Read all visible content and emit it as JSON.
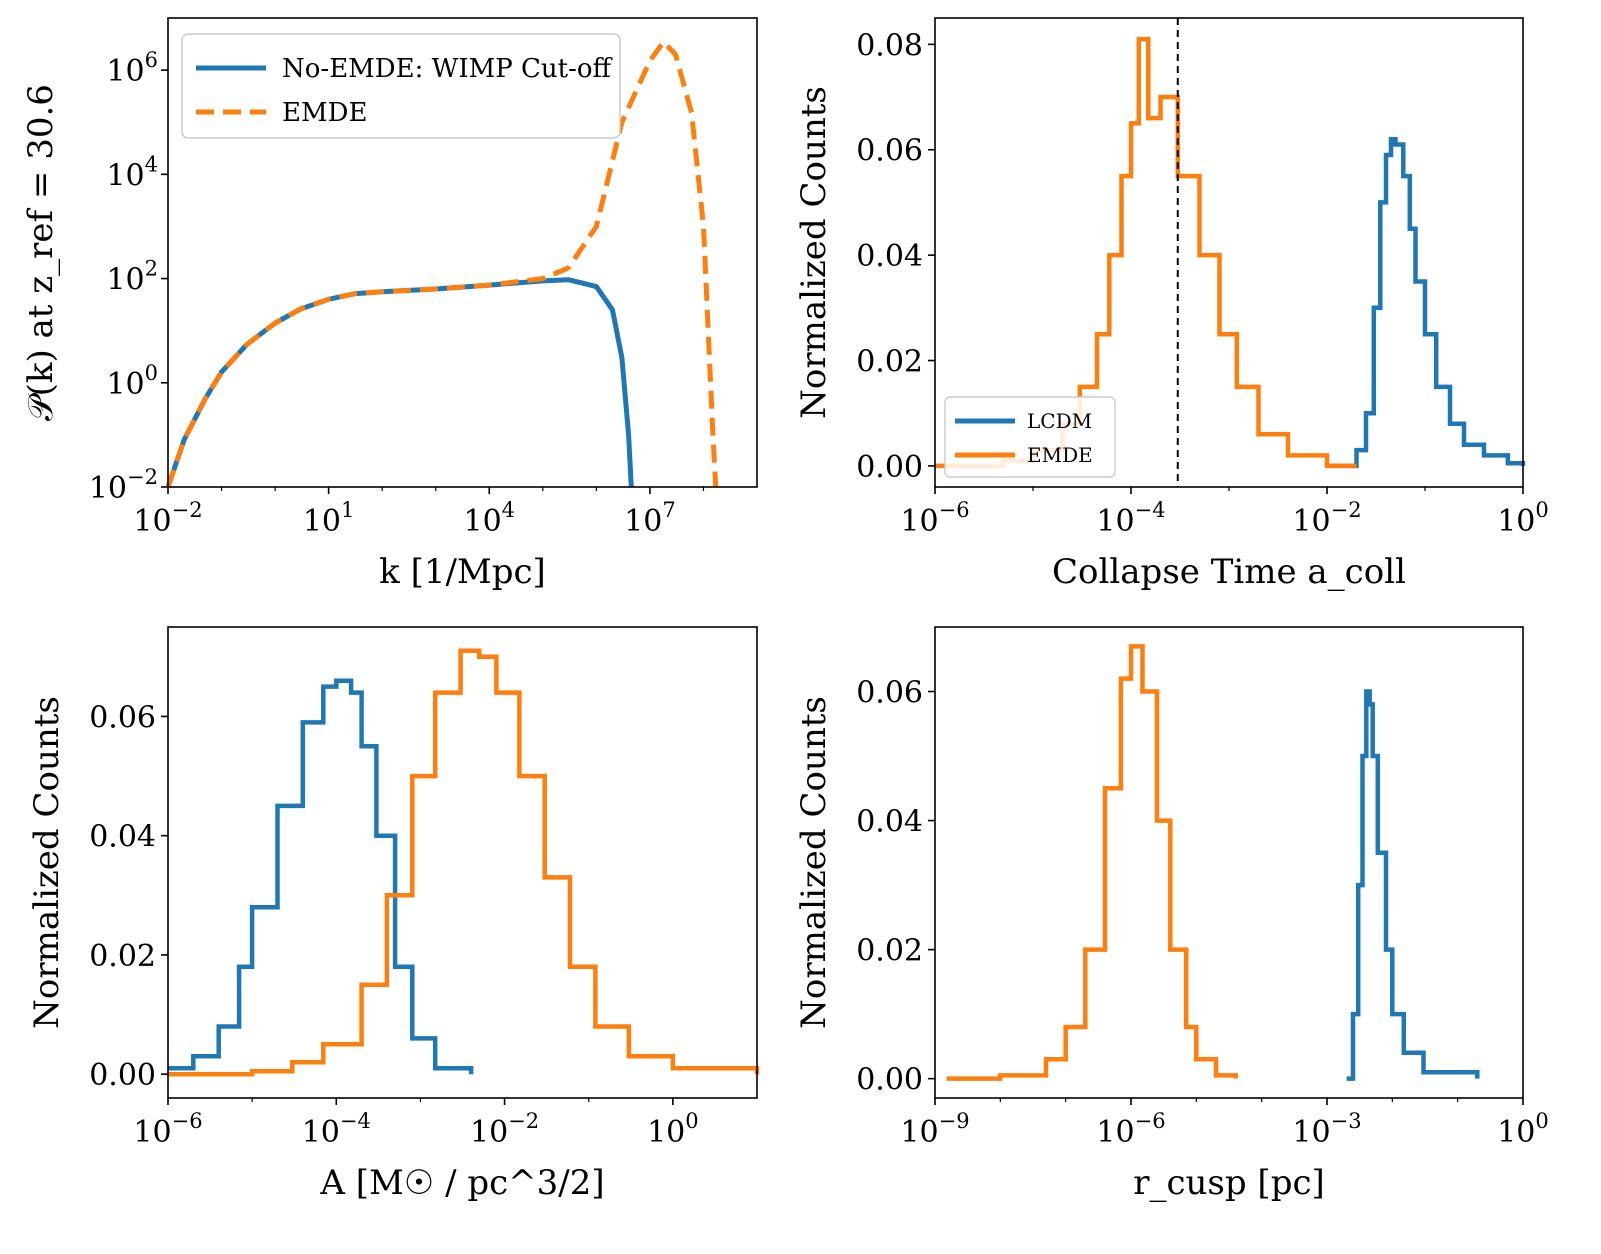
{
  "colors": {
    "blue": "#1f77b4",
    "orange": "#ff7f0e",
    "axis": "#000000"
  },
  "chart_data": [
    {
      "id": "power_spectrum",
      "type": "line",
      "xscale": "log",
      "yscale": "log",
      "xlim": [
        0.01,
        1000000000.0
      ],
      "ylim": [
        0.01,
        10000000.0
      ],
      "xlabel": "k [1/Mpc]",
      "ylabel": "𝒫(k) at z_ref = 30.6",
      "xticks": [
        {
          "v": 0.01,
          "base": "10",
          "exp": "−2"
        },
        {
          "v": 10,
          "base": "10",
          "exp": "1"
        },
        {
          "v": 10000,
          "base": "10",
          "exp": "4"
        },
        {
          "v": 10000000,
          "base": "10",
          "exp": "7"
        }
      ],
      "yticks": [
        {
          "v": 0.01,
          "base": "10",
          "exp": "−2"
        },
        {
          "v": 1,
          "base": "10",
          "exp": "0"
        },
        {
          "v": 100,
          "base": "10",
          "exp": "2"
        },
        {
          "v": 10000,
          "base": "10",
          "exp": "4"
        },
        {
          "v": 1000000,
          "base": "10",
          "exp": "6"
        }
      ],
      "legend": {
        "placement": "top-left"
      },
      "series": [
        {
          "name": "No-EMDE: WIMP Cut-off",
          "color": "blue",
          "style": "solid",
          "points": [
            [
              0.01,
              0.01
            ],
            [
              0.02,
              0.08
            ],
            [
              0.05,
              0.5
            ],
            [
              0.1,
              1.6
            ],
            [
              0.3,
              5.5
            ],
            [
              1,
              14
            ],
            [
              3,
              26
            ],
            [
              10,
              40
            ],
            [
              30,
              51
            ],
            [
              100,
              56
            ],
            [
              1000,
              63
            ],
            [
              10000,
              75
            ],
            [
              100000,
              90
            ],
            [
              300000,
              95
            ],
            [
              1000000,
              70
            ],
            [
              2000000,
              25
            ],
            [
              3000000,
              3
            ],
            [
              4000000,
              0.1
            ],
            [
              4500000,
              0.01
            ]
          ]
        },
        {
          "name": "EMDE",
          "color": "orange",
          "style": "dashed",
          "points": [
            [
              0.01,
              0.01
            ],
            [
              0.02,
              0.08
            ],
            [
              0.05,
              0.5
            ],
            [
              0.1,
              1.6
            ],
            [
              0.3,
              5.5
            ],
            [
              1,
              14
            ],
            [
              3,
              26
            ],
            [
              10,
              40
            ],
            [
              30,
              51
            ],
            [
              100,
              56
            ],
            [
              1000,
              63
            ],
            [
              10000,
              75
            ],
            [
              100000,
              100
            ],
            [
              300000,
              160
            ],
            [
              1000000,
              1000
            ],
            [
              3000000,
              100000
            ],
            [
              10000000,
              1500000
            ],
            [
              18000000,
              3500000
            ],
            [
              30000000,
              2000000
            ],
            [
              60000000,
              150000
            ],
            [
              100000000,
              1000
            ],
            [
              150000000,
              0.1
            ],
            [
              170000000,
              0.01
            ]
          ]
        }
      ]
    },
    {
      "id": "collapse_time",
      "type": "histogram",
      "xscale": "log",
      "yscale": "linear",
      "xlim": [
        1e-06,
        1
      ],
      "ylim": [
        -0.004,
        0.085
      ],
      "xlabel": "Collapse Time a_coll",
      "ylabel": "Normalized Counts",
      "xticks": [
        {
          "v": 1e-06,
          "base": "10",
          "exp": "−6"
        },
        {
          "v": 0.0001,
          "base": "10",
          "exp": "−4"
        },
        {
          "v": 0.01,
          "base": "10",
          "exp": "−2"
        },
        {
          "v": 1,
          "base": "10",
          "exp": "0"
        }
      ],
      "yticks": [
        {
          "v": 0,
          "label": "0.00"
        },
        {
          "v": 0.02,
          "label": "0.02"
        },
        {
          "v": 0.04,
          "label": "0.04"
        },
        {
          "v": 0.06,
          "label": "0.06"
        },
        {
          "v": 0.08,
          "label": "0.08"
        }
      ],
      "vline": 0.0003,
      "legend": {
        "placement": "lower-left"
      },
      "series": [
        {
          "name": "LCDM",
          "color": "blue",
          "points": [
            [
              0.01,
              0.0
            ],
            [
              0.015,
              0.0
            ],
            [
              0.02,
              0.003
            ],
            [
              0.025,
              0.01
            ],
            [
              0.03,
              0.03
            ],
            [
              0.035,
              0.05
            ],
            [
              0.04,
              0.059
            ],
            [
              0.045,
              0.062
            ],
            [
              0.05,
              0.061
            ],
            [
              0.06,
              0.055
            ],
            [
              0.07,
              0.045
            ],
            [
              0.08,
              0.035
            ],
            [
              0.1,
              0.025
            ],
            [
              0.13,
              0.015
            ],
            [
              0.18,
              0.008
            ],
            [
              0.25,
              0.004
            ],
            [
              0.4,
              0.002
            ],
            [
              0.7,
              0.0005
            ],
            [
              1,
              0.0
            ]
          ]
        },
        {
          "name": "EMDE",
          "color": "orange",
          "points": [
            [
              1e-06,
              0.0
            ],
            [
              5e-06,
              0.001
            ],
            [
              1e-05,
              0.003
            ],
            [
              2e-05,
              0.008
            ],
            [
              3e-05,
              0.015
            ],
            [
              4.5e-05,
              0.025
            ],
            [
              6e-05,
              0.04
            ],
            [
              8e-05,
              0.055
            ],
            [
              0.0001,
              0.065
            ],
            [
              0.00012,
              0.081
            ],
            [
              0.00015,
              0.066
            ],
            [
              0.0002,
              0.07
            ],
            [
              0.0003,
              0.055
            ],
            [
              0.0005,
              0.04
            ],
            [
              0.0008,
              0.025
            ],
            [
              0.0012,
              0.015
            ],
            [
              0.002,
              0.006
            ],
            [
              0.004,
              0.002
            ],
            [
              0.01,
              0.0
            ],
            [
              0.02,
              0.0
            ]
          ]
        }
      ]
    },
    {
      "id": "amplitude",
      "type": "histogram",
      "xscale": "log",
      "yscale": "linear",
      "xlim": [
        1e-06,
        10
      ],
      "ylim": [
        -0.004,
        0.075
      ],
      "xlabel": "A [M☉ / pc^3/2]",
      "ylabel": "Normalized Counts",
      "xticks": [
        {
          "v": 1e-06,
          "base": "10",
          "exp": "−6"
        },
        {
          "v": 0.0001,
          "base": "10",
          "exp": "−4"
        },
        {
          "v": 0.01,
          "base": "10",
          "exp": "−2"
        },
        {
          "v": 1,
          "base": "10",
          "exp": "0"
        }
      ],
      "yticks": [
        {
          "v": 0,
          "label": "0.00"
        },
        {
          "v": 0.02,
          "label": "0.02"
        },
        {
          "v": 0.04,
          "label": "0.04"
        },
        {
          "v": 0.06,
          "label": "0.06"
        }
      ],
      "series": [
        {
          "name": "LCDM",
          "color": "blue",
          "points": [
            [
              1e-06,
              0.001
            ],
            [
              2e-06,
              0.003
            ],
            [
              4e-06,
              0.008
            ],
            [
              7e-06,
              0.018
            ],
            [
              1e-05,
              0.028
            ],
            [
              2e-05,
              0.045
            ],
            [
              4e-05,
              0.059
            ],
            [
              7e-05,
              0.065
            ],
            [
              0.0001,
              0.066
            ],
            [
              0.00015,
              0.064
            ],
            [
              0.0002,
              0.055
            ],
            [
              0.0003,
              0.04
            ],
            [
              0.0005,
              0.018
            ],
            [
              0.0008,
              0.006
            ],
            [
              0.0015,
              0.001
            ],
            [
              0.004,
              0.0
            ]
          ]
        },
        {
          "name": "EMDE",
          "color": "orange",
          "points": [
            [
              1e-06,
              0.0
            ],
            [
              1e-05,
              0.0005
            ],
            [
              3e-05,
              0.002
            ],
            [
              7e-05,
              0.005
            ],
            [
              0.0002,
              0.015
            ],
            [
              0.0004,
              0.03
            ],
            [
              0.0008,
              0.05
            ],
            [
              0.0015,
              0.064
            ],
            [
              0.003,
              0.071
            ],
            [
              0.005,
              0.07
            ],
            [
              0.008,
              0.064
            ],
            [
              0.015,
              0.05
            ],
            [
              0.03,
              0.033
            ],
            [
              0.06,
              0.018
            ],
            [
              0.12,
              0.008
            ],
            [
              0.3,
              0.003
            ],
            [
              1,
              0.001
            ],
            [
              10,
              0.0
            ]
          ]
        }
      ]
    },
    {
      "id": "r_cusp",
      "type": "histogram",
      "xscale": "log",
      "yscale": "linear",
      "xlim": [
        1e-09,
        1
      ],
      "ylim": [
        -0.003,
        0.07
      ],
      "xlabel": "r_cusp [pc]",
      "ylabel": "Normalized Counts",
      "xticks": [
        {
          "v": 1e-09,
          "base": "10",
          "exp": "−9"
        },
        {
          "v": 1e-06,
          "base": "10",
          "exp": "−6"
        },
        {
          "v": 0.001,
          "base": "10",
          "exp": "−3"
        },
        {
          "v": 1,
          "base": "10",
          "exp": "0"
        }
      ],
      "yticks": [
        {
          "v": 0,
          "label": "0.00"
        },
        {
          "v": 0.02,
          "label": "0.02"
        },
        {
          "v": 0.04,
          "label": "0.04"
        },
        {
          "v": 0.06,
          "label": "0.06"
        }
      ],
      "series": [
        {
          "name": "LCDM",
          "color": "blue",
          "points": [
            [
              0.002,
              0.0
            ],
            [
              0.0025,
              0.01
            ],
            [
              0.003,
              0.03
            ],
            [
              0.0035,
              0.05
            ],
            [
              0.004,
              0.06
            ],
            [
              0.0045,
              0.058
            ],
            [
              0.005,
              0.05
            ],
            [
              0.006,
              0.035
            ],
            [
              0.008,
              0.02
            ],
            [
              0.01,
              0.01
            ],
            [
              0.015,
              0.004
            ],
            [
              0.03,
              0.001
            ],
            [
              0.2,
              0.0
            ]
          ]
        },
        {
          "name": "EMDE",
          "color": "orange",
          "points": [
            [
              1.5e-09,
              0.0
            ],
            [
              1e-08,
              0.0005
            ],
            [
              5e-08,
              0.003
            ],
            [
              1e-07,
              0.008
            ],
            [
              2e-07,
              0.02
            ],
            [
              4e-07,
              0.045
            ],
            [
              7e-07,
              0.062
            ],
            [
              1e-06,
              0.067
            ],
            [
              1.5e-06,
              0.06
            ],
            [
              2.5e-06,
              0.04
            ],
            [
              4e-06,
              0.02
            ],
            [
              7e-06,
              0.008
            ],
            [
              1e-05,
              0.003
            ],
            [
              2e-05,
              0.0005
            ],
            [
              4e-05,
              0.0
            ]
          ]
        }
      ]
    }
  ]
}
